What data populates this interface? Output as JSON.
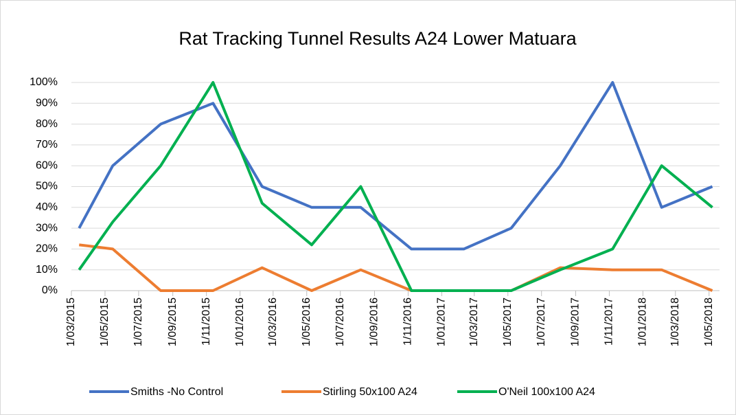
{
  "chart_data": {
    "type": "line",
    "title": "Rat Tracking Tunnel Results A24 Lower Matuara",
    "x": [
      "2015-03-15",
      "2015-05-15",
      "2015-08-10",
      "2015-11-13",
      "2016-02-10",
      "2016-05-10",
      "2016-08-07",
      "2016-11-07",
      "2017-02-10",
      "2017-05-07",
      "2017-08-04",
      "2017-11-07",
      "2018-02-04",
      "2018-05-07"
    ],
    "series": [
      {
        "name": "Smiths -No Control",
        "color": "#4472c4",
        "values": [
          30,
          60,
          80,
          90,
          50,
          40,
          40,
          20,
          20,
          30,
          60,
          100,
          40,
          50
        ]
      },
      {
        "name": "Stirling 50x100 A24",
        "color": "#ed7d31",
        "values": [
          22,
          20,
          0,
          0,
          11,
          0,
          10,
          0,
          0,
          0,
          11,
          10,
          10,
          0
        ]
      },
      {
        "name": "O'Neil 100x100 A24",
        "color": "#00b050",
        "values": [
          10,
          33,
          60,
          100,
          42,
          22,
          50,
          0,
          0,
          0,
          10,
          20,
          60,
          40
        ]
      }
    ],
    "xlim": [
      "2015-03-01",
      "2018-05-20"
    ],
    "xticks": [
      {
        "value": "2015-03-01",
        "label": "1/03/2015"
      },
      {
        "value": "2015-05-01",
        "label": "1/05/2015"
      },
      {
        "value": "2015-07-01",
        "label": "1/07/2015"
      },
      {
        "value": "2015-09-01",
        "label": "1/09/2015"
      },
      {
        "value": "2015-11-01",
        "label": "1/11/2015"
      },
      {
        "value": "2016-01-01",
        "label": "1/01/2016"
      },
      {
        "value": "2016-03-01",
        "label": "1/03/2016"
      },
      {
        "value": "2016-05-01",
        "label": "1/05/2016"
      },
      {
        "value": "2016-07-01",
        "label": "1/07/2016"
      },
      {
        "value": "2016-09-01",
        "label": "1/09/2016"
      },
      {
        "value": "2016-11-01",
        "label": "1/11/2016"
      },
      {
        "value": "2017-01-01",
        "label": "1/01/2017"
      },
      {
        "value": "2017-03-01",
        "label": "1/03/2017"
      },
      {
        "value": "2017-05-01",
        "label": "1/05/2017"
      },
      {
        "value": "2017-07-01",
        "label": "1/07/2017"
      },
      {
        "value": "2017-09-01",
        "label": "1/09/2017"
      },
      {
        "value": "2017-11-01",
        "label": "1/11/2017"
      },
      {
        "value": "2018-01-01",
        "label": "1/01/2018"
      },
      {
        "value": "2018-03-01",
        "label": "1/03/2018"
      },
      {
        "value": "2018-05-01",
        "label": "1/05/2018"
      }
    ],
    "ylim": [
      0,
      100
    ],
    "yticks": [
      {
        "value": 0,
        "label": "0%"
      },
      {
        "value": 10,
        "label": "10%"
      },
      {
        "value": 20,
        "label": "20%"
      },
      {
        "value": 30,
        "label": "30%"
      },
      {
        "value": 40,
        "label": "40%"
      },
      {
        "value": 50,
        "label": "50%"
      },
      {
        "value": 60,
        "label": "60%"
      },
      {
        "value": 70,
        "label": "70%"
      },
      {
        "value": 80,
        "label": "80%"
      },
      {
        "value": 90,
        "label": "90%"
      },
      {
        "value": 100,
        "label": "100%"
      }
    ],
    "grid": true,
    "legend": "bottom"
  }
}
